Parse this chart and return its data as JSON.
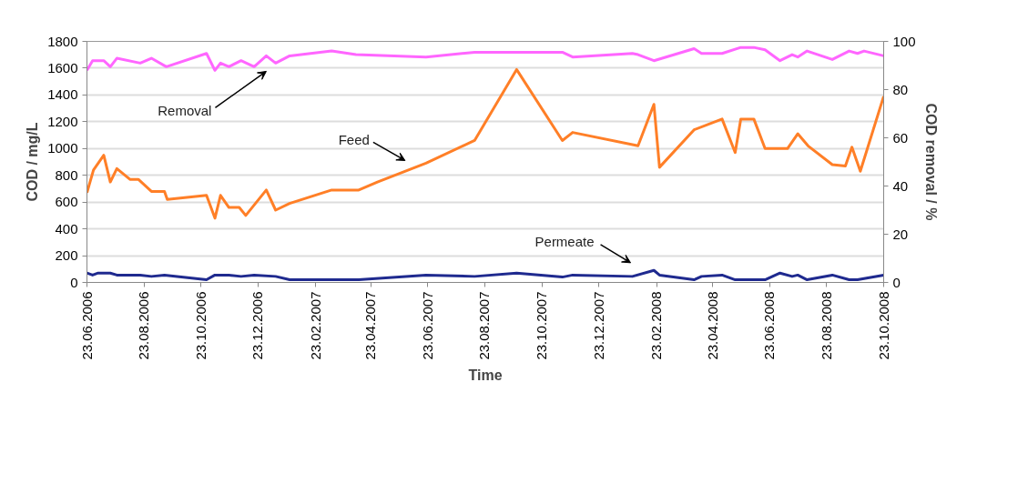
{
  "chart_data": {
    "type": "line",
    "xlabel": "Time",
    "ylabel": "COD / mg/L",
    "y2label": "COD removal / %",
    "xlim": [
      "2006-06-23",
      "2008-10-23"
    ],
    "xticks": [
      {
        "value": "2006-06-23",
        "label": "23.06.2006"
      },
      {
        "value": "2006-08-23",
        "label": "23.08.2006"
      },
      {
        "value": "2006-10-23",
        "label": "23.10.2006"
      },
      {
        "value": "2006-12-23",
        "label": "23.12.2006"
      },
      {
        "value": "2007-02-23",
        "label": "23.02.2007"
      },
      {
        "value": "2007-04-23",
        "label": "23.04.2007"
      },
      {
        "value": "2007-06-23",
        "label": "23.06.2007"
      },
      {
        "value": "2007-08-23",
        "label": "23.08.2007"
      },
      {
        "value": "2007-10-23",
        "label": "23.10.2007"
      },
      {
        "value": "2007-12-23",
        "label": "23.12.2007"
      },
      {
        "value": "2008-02-23",
        "label": "23.02.2008"
      },
      {
        "value": "2008-04-23",
        "label": "23.04.2008"
      },
      {
        "value": "2008-06-23",
        "label": "23.06.2008"
      },
      {
        "value": "2008-08-23",
        "label": "23.08.2008"
      },
      {
        "value": "2008-10-23",
        "label": "23.10.2008"
      }
    ],
    "ylim": [
      0,
      1800
    ],
    "yticks": [
      0,
      200,
      400,
      600,
      800,
      1000,
      1200,
      1400,
      1600,
      1800
    ],
    "y2lim": [
      0,
      100
    ],
    "y2ticks": [
      0,
      20,
      40,
      60,
      80,
      100
    ],
    "grid": "y",
    "marker": "none",
    "line_style": "solid",
    "series": [
      {
        "name": "Feed",
        "color": "#ff7f27",
        "x": [
          "2006-06-23",
          "2006-06-30",
          "2006-07-11",
          "2006-07-18",
          "2006-07-25",
          "2006-08-08",
          "2006-08-17",
          "2006-08-31",
          "2006-09-14",
          "2006-09-17",
          "2006-10-29",
          "2006-11-07",
          "2006-11-13",
          "2006-11-22",
          "2006-12-03",
          "2006-12-10",
          "2007-01-01",
          "2007-01-11",
          "2007-01-26",
          "2007-03-12",
          "2007-04-10",
          "2007-04-30",
          "2007-06-21",
          "2007-08-12",
          "2007-09-26",
          "2007-11-14",
          "2007-11-25",
          "2008-02-03",
          "2008-02-20",
          "2008-02-26",
          "2008-04-03",
          "2008-05-03",
          "2008-05-17",
          "2008-05-23",
          "2008-06-06",
          "2008-06-18",
          "2008-07-12",
          "2008-07-23",
          "2008-08-03",
          "2008-08-29",
          "2008-09-12",
          "2008-09-19",
          "2008-09-28",
          "2008-10-23"
        ],
        "values": [
          670,
          840,
          950,
          750,
          850,
          770,
          770,
          680,
          680,
          620,
          650,
          480,
          650,
          560,
          560,
          500,
          690,
          540,
          590,
          690,
          690,
          750,
          890,
          1060,
          1590,
          1060,
          1120,
          1020,
          1330,
          860,
          1140,
          1220,
          970,
          1220,
          1220,
          1000,
          1000,
          1110,
          1020,
          880,
          870,
          1010,
          830,
          1390
        ]
      },
      {
        "name": "Permeate",
        "color": "#1f2a8f",
        "x": [
          "2006-06-23",
          "2006-06-29",
          "2006-07-05",
          "2006-07-18",
          "2006-07-25",
          "2006-08-19",
          "2006-08-31",
          "2006-09-14",
          "2006-10-29",
          "2006-11-07",
          "2006-11-22",
          "2006-12-05",
          "2006-12-19",
          "2007-01-11",
          "2007-01-26",
          "2007-04-10",
          "2007-06-21",
          "2007-08-12",
          "2007-09-26",
          "2007-11-14",
          "2007-11-25",
          "2008-01-28",
          "2008-02-20",
          "2008-02-26",
          "2008-04-03",
          "2008-04-11",
          "2008-05-03",
          "2008-05-17",
          "2008-06-18",
          "2008-07-04",
          "2008-07-17",
          "2008-07-23",
          "2008-08-02",
          "2008-08-29",
          "2008-09-16",
          "2008-09-25",
          "2008-10-23"
        ],
        "values": [
          70,
          55,
          70,
          70,
          55,
          55,
          45,
          55,
          20,
          55,
          55,
          45,
          55,
          45,
          20,
          20,
          55,
          45,
          70,
          40,
          55,
          45,
          90,
          55,
          20,
          45,
          55,
          20,
          20,
          70,
          45,
          55,
          20,
          55,
          20,
          20,
          55
        ]
      },
      {
        "name": "Removal",
        "color": "#ff66ff",
        "axis": "y2",
        "x": [
          "2006-06-23",
          "2006-06-29",
          "2006-07-11",
          "2006-07-18",
          "2006-07-25",
          "2006-08-19",
          "2006-08-31",
          "2006-09-16",
          "2006-10-29",
          "2006-11-07",
          "2006-11-13",
          "2006-11-22",
          "2006-12-05",
          "2006-12-19",
          "2007-01-01",
          "2007-01-11",
          "2007-01-26",
          "2007-03-12",
          "2007-04-07",
          "2007-06-21",
          "2007-08-12",
          "2007-11-14",
          "2007-11-25",
          "2008-01-28",
          "2008-02-03",
          "2008-02-20",
          "2008-04-03",
          "2008-04-11",
          "2008-05-03",
          "2008-05-23",
          "2008-06-06",
          "2008-06-18",
          "2008-07-04",
          "2008-07-17",
          "2008-07-23",
          "2008-08-02",
          "2008-08-29",
          "2008-09-16",
          "2008-09-25",
          "2008-10-02",
          "2008-10-23"
        ],
        "values": [
          88,
          92,
          92,
          89.5,
          93,
          91,
          93,
          89.5,
          95,
          88,
          91,
          89.5,
          92,
          89.5,
          94,
          91,
          94,
          96,
          94.5,
          93.5,
          95.5,
          95.5,
          93.5,
          95,
          94.5,
          92,
          97,
          95,
          95,
          97.5,
          97.5,
          96.5,
          92,
          94.5,
          93.5,
          96,
          92.5,
          96,
          95,
          96,
          94
        ]
      }
    ]
  }
}
